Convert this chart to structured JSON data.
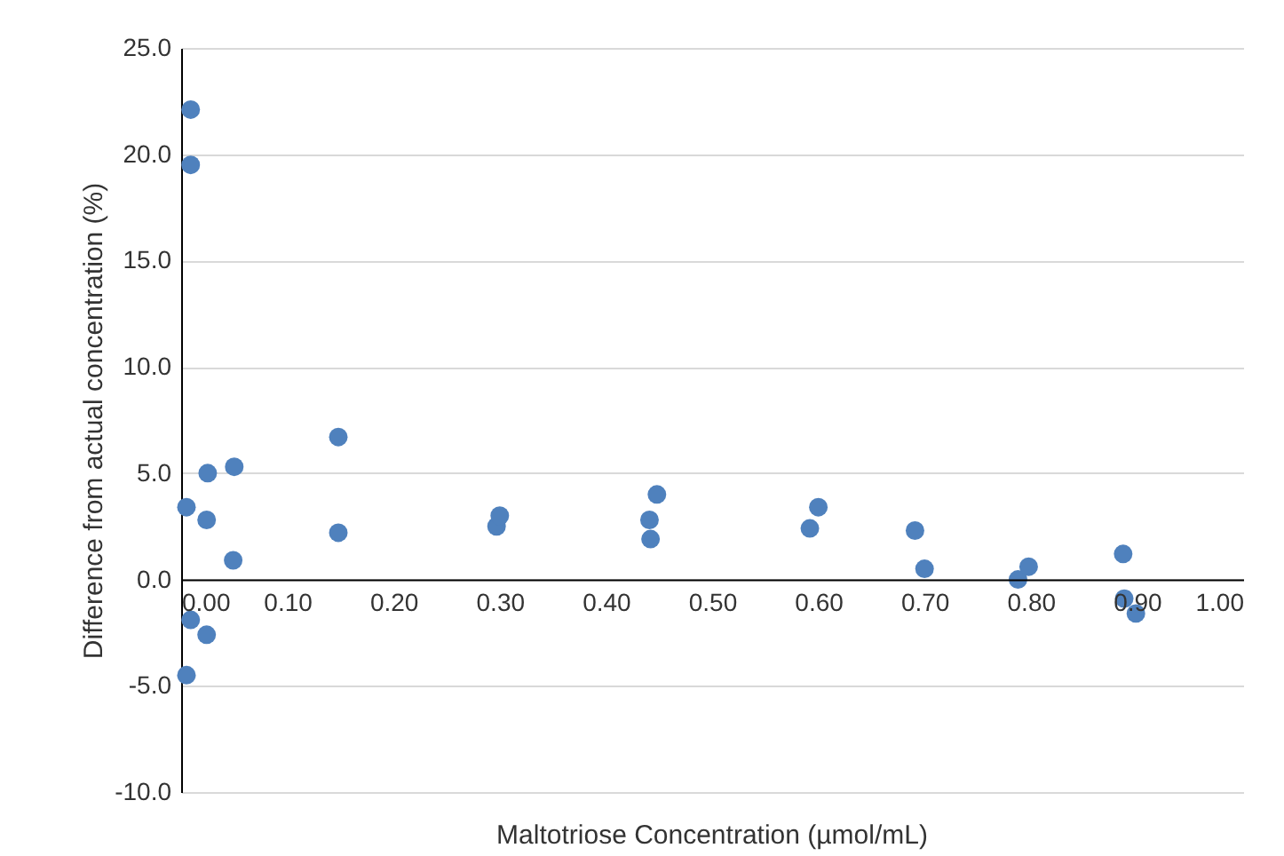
{
  "chart_data": {
    "type": "scatter",
    "xlabel": "Maltotriose Concentration (µmol/mL)",
    "ylabel": "Difference from actual concentration (%)",
    "x": [
      0.009,
      0.009,
      0.005,
      0.025,
      0.05,
      0.148,
      0.024,
      0.049,
      0.148,
      0.297,
      0.3,
      0.009,
      0.024,
      0.005,
      0.448,
      0.441,
      0.442,
      0.6,
      0.592,
      0.691,
      0.7,
      0.788,
      0.798,
      0.887,
      0.888,
      0.899
    ],
    "series": [
      {
        "color": "#4f81bd",
        "values": [
          22.1,
          19.5,
          3.4,
          5.0,
          5.3,
          6.7,
          2.8,
          0.9,
          2.2,
          2.5,
          3.0,
          -1.9,
          -2.6,
          -4.5,
          4.0,
          2.8,
          1.9,
          3.4,
          2.4,
          2.3,
          0.5,
          0.0,
          0.6,
          1.2,
          -0.9,
          -1.6
        ]
      }
    ],
    "xlim": [
      0,
      1.0
    ],
    "ylim": [
      -10,
      25
    ],
    "xticks": [
      {
        "value": 0,
        "label": "0.00"
      },
      {
        "value": 0.1,
        "label": "0.10"
      },
      {
        "value": 0.2,
        "label": "0.20"
      },
      {
        "value": 0.3,
        "label": "0.30"
      },
      {
        "value": 0.4,
        "label": "0.40"
      },
      {
        "value": 0.5,
        "label": "0.50"
      },
      {
        "value": 0.6,
        "label": "0.60"
      },
      {
        "value": 0.7,
        "label": "0.70"
      },
      {
        "value": 0.8,
        "label": "0.80"
      },
      {
        "value": 0.9,
        "label": "0.90"
      },
      {
        "value": 1.0,
        "label": "1.00"
      }
    ],
    "yticks": [
      {
        "value": -10,
        "label": "-10.0"
      },
      {
        "value": -5,
        "label": "-5.0"
      },
      {
        "value": 0,
        "label": "0.0"
      },
      {
        "value": 5,
        "label": "5.0"
      },
      {
        "value": 10,
        "label": "10.0"
      },
      {
        "value": 15,
        "label": "15.0"
      },
      {
        "value": 20,
        "label": "20.0"
      },
      {
        "value": 25,
        "label": "25.0"
      }
    ],
    "grid": "y",
    "marker": "circle",
    "legend": false
  }
}
